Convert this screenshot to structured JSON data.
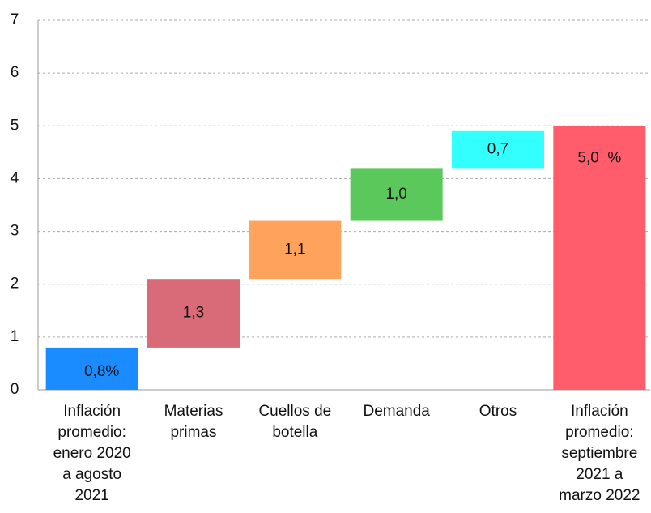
{
  "chart_data": {
    "type": "waterfall",
    "categories": [
      [
        "Inflación",
        "promedio:",
        "enero 2020",
        "a agosto",
        "2021"
      ],
      [
        "Materias",
        "primas"
      ],
      [
        "Cuellos de",
        "botella"
      ],
      [
        "Demanda"
      ],
      [
        "Otros"
      ],
      [
        "Inflación",
        "promedio:",
        "septiembre",
        "2021 a",
        "marzo 2022"
      ]
    ],
    "values": [
      0.8,
      1.3,
      1.1,
      1.0,
      0.7,
      5.0
    ],
    "value_labels": [
      "0,8%",
      "1,3",
      "1,1",
      "1,0",
      "0,7",
      "5,0  %"
    ],
    "is_total": [
      false,
      false,
      false,
      false,
      false,
      true
    ],
    "colors": [
      "#1a8cff",
      "#d96a78",
      "#ffa35c",
      "#5ac85a",
      "#33ffff",
      "#ff5c6c"
    ],
    "ylim": [
      0,
      7
    ],
    "yticks": [
      0,
      1,
      2,
      3,
      4,
      5,
      6,
      7
    ],
    "grid": true
  }
}
